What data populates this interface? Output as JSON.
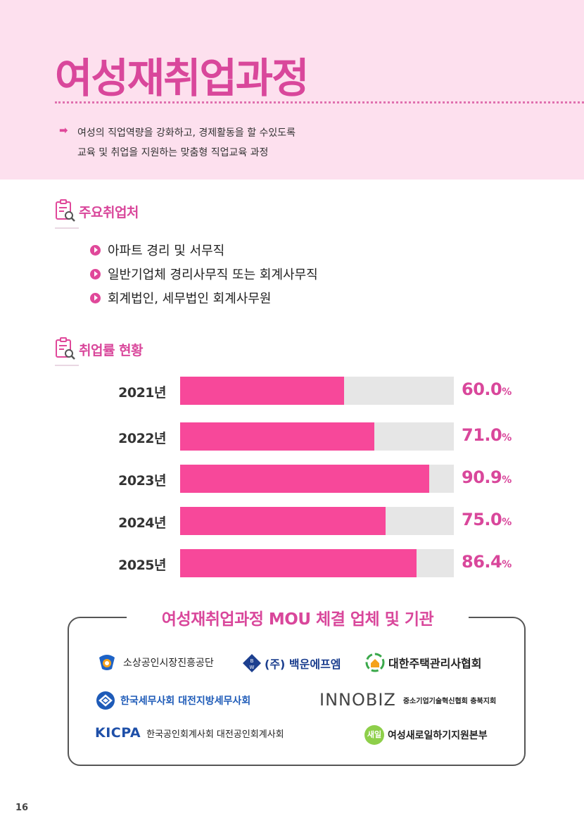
{
  "header": {
    "title": "여성재취업과정",
    "intro_lines": [
      "여성의 직업역량을 강화하고, 경제활동을 할 수있도록",
      "교육 및 취업을 지원하는 맞춤형 직업교육 과정"
    ]
  },
  "sections": {
    "employers_title": "주요취업처",
    "rate_title": "취업률 현황"
  },
  "employers": [
    "아파트 경리 및 서무직",
    "일반기업체 경리사무직 또는 회계사무직",
    "회계법인, 세무법인 회계사무원"
  ],
  "chart_data": {
    "type": "bar",
    "orientation": "horizontal",
    "categories": [
      "2021년",
      "2022년",
      "2023년",
      "2024년",
      "2025년"
    ],
    "values": [
      60.0,
      71.0,
      90.9,
      75.0,
      86.4
    ],
    "value_labels": [
      "60.0",
      "71.0",
      "90.9",
      "75.0",
      "86.4"
    ],
    "unit": "%",
    "xlim": [
      0,
      100
    ],
    "colors": {
      "bar": "#f7489a",
      "track": "#e6e6e6",
      "label": "#d9479b"
    }
  },
  "mou": {
    "title": "여성재취업과정 MOU 체결 업체 및 기관",
    "partners": {
      "semas": "소상공인시장진흥공단",
      "baekun": "(주) 백운에프엠",
      "housing": "대한주택관리사협회",
      "tax": "한국세무사회 대전지방세무사회",
      "innobiz_logo": "INNOBIZ",
      "innobiz_sub": "중소기업기술혁신협회 충북지회",
      "kicpa_logo": "KICPA",
      "kicpa_sub": "한국공인회계사회 대전공인회계사회",
      "saeil_mark": "새일",
      "saeil": "여성새로일하기지원본부"
    }
  },
  "page_number": "16"
}
